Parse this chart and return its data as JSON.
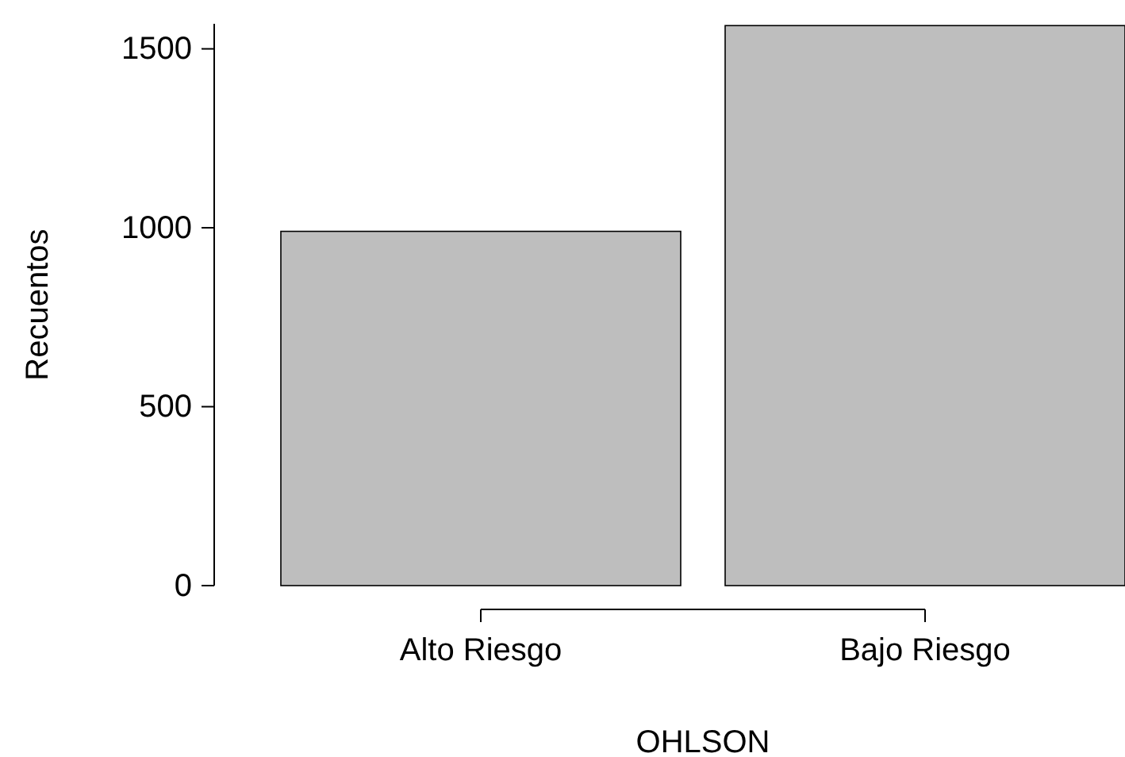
{
  "chart_data": {
    "type": "bar",
    "xlabel": "OHLSON",
    "ylabel": "Recuentos",
    "categories": [
      "Alto Riesgo",
      "Bajo Riesgo"
    ],
    "values": [
      990,
      1565
    ],
    "color": "#bebebe",
    "ylim": [
      0,
      1570
    ],
    "yticks": [
      0,
      500,
      1000,
      1500
    ],
    "grid": false
  }
}
